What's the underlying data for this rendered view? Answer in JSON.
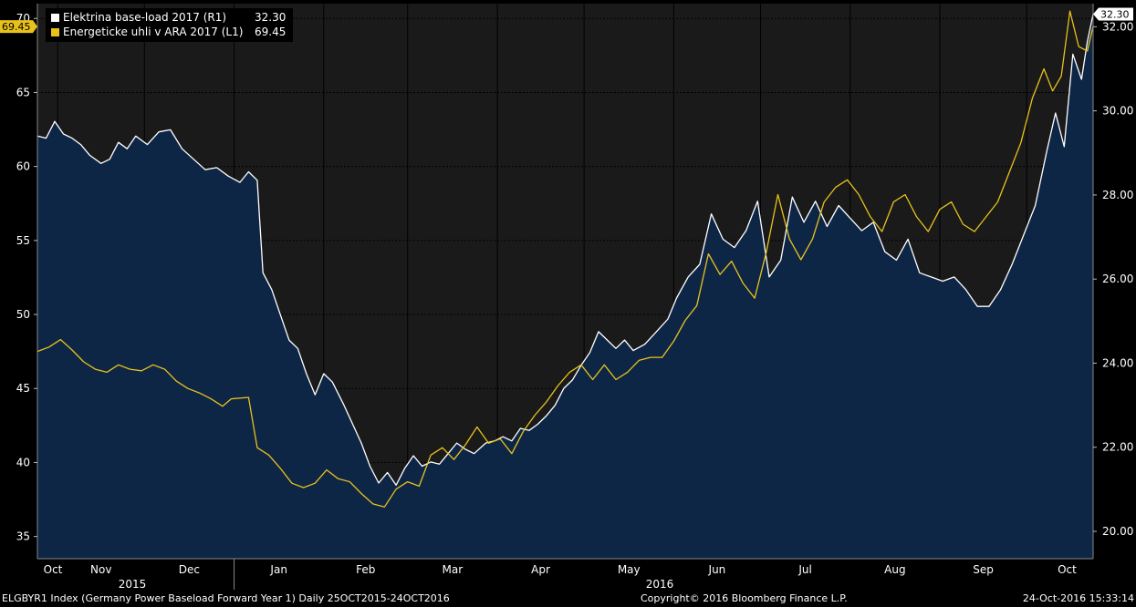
{
  "legend": [
    {
      "name": "Elektrina base-load 2017 (R1)",
      "value": "32.30",
      "color": "#ffffff"
    },
    {
      "name": "Energeticke uhli v ARA 2017 (L1)",
      "value": "69.45",
      "color": "#e8c21b"
    }
  ],
  "left_badge": "69.45",
  "right_badge": "32.30",
  "footer": {
    "left": "ELGBYR1 Index (Germany Power Baseload Forward Year 1)  Daily 25OCT2015-24OCT2016",
    "center": "Copyright© 2016 Bloomberg Finance L.P.",
    "right": "24-Oct-2016 15:33:14"
  },
  "chart_data": {
    "type": "line",
    "x_range": [
      "2015-10-25",
      "2016-10-24"
    ],
    "months": [
      "Oct",
      "Nov",
      "Dec",
      "Jan",
      "Feb",
      "Mar",
      "Apr",
      "May",
      "Jun",
      "Jul",
      "Aug",
      "Sep",
      "Oct"
    ],
    "years": [
      "2015",
      "2016"
    ],
    "left_axis": {
      "ticks": [
        "35",
        "40",
        "45",
        "50",
        "55",
        "60",
        "65",
        "70"
      ],
      "range": [
        33.5,
        71
      ]
    },
    "right_axis": {
      "ticks": [
        "20.00",
        "22.00",
        "24.00",
        "26.00",
        "28.00",
        "30.00",
        "32.00"
      ],
      "range": [
        19.35,
        32.55
      ]
    },
    "series": [
      {
        "name": "Elektrina base-load 2017 (R1)",
        "axis": "right",
        "color": "#ffffff",
        "fill": "#0e2646",
        "points": [
          [
            "2015-10-25",
            29.4
          ],
          [
            "2015-10-28",
            29.35
          ],
          [
            "2015-10-31",
            29.75
          ],
          [
            "2015-11-03",
            29.45
          ],
          [
            "2015-11-06",
            29.35
          ],
          [
            "2015-11-09",
            29.2
          ],
          [
            "2015-11-12",
            28.95
          ],
          [
            "2015-11-16",
            28.75
          ],
          [
            "2015-11-19",
            28.85
          ],
          [
            "2015-11-22",
            29.25
          ],
          [
            "2015-11-25",
            29.1
          ],
          [
            "2015-11-28",
            29.4
          ],
          [
            "2015-12-02",
            29.2
          ],
          [
            "2015-12-06",
            29.5
          ],
          [
            "2015-12-10",
            29.55
          ],
          [
            "2015-12-14",
            29.1
          ],
          [
            "2015-12-18",
            28.85
          ],
          [
            "2015-12-22",
            28.6
          ],
          [
            "2015-12-26",
            28.65
          ],
          [
            "2015-12-30",
            28.45
          ],
          [
            "2016-01-03",
            28.3
          ],
          [
            "2016-01-06",
            28.55
          ],
          [
            "2016-01-09",
            28.35
          ],
          [
            "2016-01-11",
            26.15
          ],
          [
            "2016-01-14",
            25.75
          ],
          [
            "2016-01-17",
            25.15
          ],
          [
            "2016-01-20",
            24.55
          ],
          [
            "2016-01-23",
            24.35
          ],
          [
            "2016-01-26",
            23.75
          ],
          [
            "2016-01-29",
            23.25
          ],
          [
            "2016-02-01",
            23.75
          ],
          [
            "2016-02-04",
            23.55
          ],
          [
            "2016-02-08",
            23.0
          ],
          [
            "2016-02-11",
            22.55
          ],
          [
            "2016-02-14",
            22.1
          ],
          [
            "2016-02-17",
            21.55
          ],
          [
            "2016-02-20",
            21.15
          ],
          [
            "2016-02-23",
            21.4
          ],
          [
            "2016-02-26",
            21.1
          ],
          [
            "2016-02-29",
            21.5
          ],
          [
            "2016-03-03",
            21.8
          ],
          [
            "2016-03-06",
            21.55
          ],
          [
            "2016-03-09",
            21.65
          ],
          [
            "2016-03-12",
            21.6
          ],
          [
            "2016-03-15",
            21.85
          ],
          [
            "2016-03-18",
            22.1
          ],
          [
            "2016-03-21",
            21.95
          ],
          [
            "2016-03-24",
            21.85
          ],
          [
            "2016-03-28",
            22.1
          ],
          [
            "2016-03-31",
            22.15
          ],
          [
            "2016-04-03",
            22.25
          ],
          [
            "2016-04-06",
            22.15
          ],
          [
            "2016-04-09",
            22.45
          ],
          [
            "2016-04-12",
            22.4
          ],
          [
            "2016-04-15",
            22.55
          ],
          [
            "2016-04-18",
            22.75
          ],
          [
            "2016-04-21",
            23.0
          ],
          [
            "2016-04-24",
            23.4
          ],
          [
            "2016-04-27",
            23.6
          ],
          [
            "2016-04-30",
            23.95
          ],
          [
            "2016-05-03",
            24.25
          ],
          [
            "2016-05-06",
            24.75
          ],
          [
            "2016-05-09",
            24.55
          ],
          [
            "2016-05-12",
            24.35
          ],
          [
            "2016-05-15",
            24.55
          ],
          [
            "2016-05-18",
            24.3
          ],
          [
            "2016-05-22",
            24.45
          ],
          [
            "2016-05-26",
            24.75
          ],
          [
            "2016-05-30",
            25.05
          ],
          [
            "2016-06-02",
            25.55
          ],
          [
            "2016-06-06",
            26.05
          ],
          [
            "2016-06-10",
            26.35
          ],
          [
            "2016-06-14",
            27.55
          ],
          [
            "2016-06-18",
            26.95
          ],
          [
            "2016-06-22",
            26.75
          ],
          [
            "2016-06-26",
            27.15
          ],
          [
            "2016-06-30",
            27.85
          ],
          [
            "2016-07-04",
            26.05
          ],
          [
            "2016-07-08",
            26.45
          ],
          [
            "2016-07-12",
            27.95
          ],
          [
            "2016-07-16",
            27.35
          ],
          [
            "2016-07-20",
            27.85
          ],
          [
            "2016-07-24",
            27.25
          ],
          [
            "2016-07-28",
            27.75
          ],
          [
            "2016-08-01",
            27.45
          ],
          [
            "2016-08-05",
            27.15
          ],
          [
            "2016-08-09",
            27.35
          ],
          [
            "2016-08-13",
            26.65
          ],
          [
            "2016-08-17",
            26.45
          ],
          [
            "2016-08-21",
            26.95
          ],
          [
            "2016-08-25",
            26.15
          ],
          [
            "2016-08-29",
            26.05
          ],
          [
            "2016-09-02",
            25.95
          ],
          [
            "2016-09-06",
            26.05
          ],
          [
            "2016-09-10",
            25.75
          ],
          [
            "2016-09-14",
            25.35
          ],
          [
            "2016-09-18",
            25.35
          ],
          [
            "2016-09-22",
            25.75
          ],
          [
            "2016-09-26",
            26.35
          ],
          [
            "2016-09-30",
            27.05
          ],
          [
            "2016-10-04",
            27.75
          ],
          [
            "2016-10-08",
            29.05
          ],
          [
            "2016-10-11",
            29.95
          ],
          [
            "2016-10-14",
            29.15
          ],
          [
            "2016-10-17",
            31.35
          ],
          [
            "2016-10-20",
            30.75
          ],
          [
            "2016-10-22",
            31.65
          ],
          [
            "2016-10-24",
            32.3
          ]
        ]
      },
      {
        "name": "Energeticke uhli v ARA 2017 (L1)",
        "axis": "left",
        "color": "#e8c21b",
        "points": [
          [
            "2015-10-25",
            47.5
          ],
          [
            "2015-10-29",
            47.8
          ],
          [
            "2015-11-02",
            48.3
          ],
          [
            "2015-11-06",
            47.6
          ],
          [
            "2015-11-10",
            46.8
          ],
          [
            "2015-11-14",
            46.3
          ],
          [
            "2015-11-18",
            46.1
          ],
          [
            "2015-11-22",
            46.6
          ],
          [
            "2015-11-26",
            46.3
          ],
          [
            "2015-11-30",
            46.2
          ],
          [
            "2015-12-04",
            46.6
          ],
          [
            "2015-12-08",
            46.3
          ],
          [
            "2015-12-12",
            45.5
          ],
          [
            "2015-12-16",
            45.0
          ],
          [
            "2015-12-20",
            44.7
          ],
          [
            "2015-12-24",
            44.3
          ],
          [
            "2015-12-28",
            43.8
          ],
          [
            "2015-12-31",
            44.3
          ],
          [
            "2016-01-06",
            44.4
          ],
          [
            "2016-01-09",
            41.0
          ],
          [
            "2016-01-13",
            40.5
          ],
          [
            "2016-01-17",
            39.6
          ],
          [
            "2016-01-21",
            38.6
          ],
          [
            "2016-01-25",
            38.3
          ],
          [
            "2016-01-29",
            38.6
          ],
          [
            "2016-02-02",
            39.5
          ],
          [
            "2016-02-06",
            38.9
          ],
          [
            "2016-02-10",
            38.7
          ],
          [
            "2016-02-14",
            37.9
          ],
          [
            "2016-02-18",
            37.2
          ],
          [
            "2016-02-22",
            37.0
          ],
          [
            "2016-02-26",
            38.2
          ],
          [
            "2016-03-01",
            38.7
          ],
          [
            "2016-03-05",
            38.4
          ],
          [
            "2016-03-09",
            40.5
          ],
          [
            "2016-03-13",
            41.0
          ],
          [
            "2016-03-17",
            40.2
          ],
          [
            "2016-03-21",
            41.2
          ],
          [
            "2016-03-25",
            42.4
          ],
          [
            "2016-03-29",
            41.3
          ],
          [
            "2016-04-02",
            41.6
          ],
          [
            "2016-04-06",
            40.6
          ],
          [
            "2016-04-10",
            42.1
          ],
          [
            "2016-04-14",
            43.2
          ],
          [
            "2016-04-18",
            44.1
          ],
          [
            "2016-04-22",
            45.2
          ],
          [
            "2016-04-26",
            46.1
          ],
          [
            "2016-04-30",
            46.6
          ],
          [
            "2016-05-04",
            45.6
          ],
          [
            "2016-05-08",
            46.6
          ],
          [
            "2016-05-12",
            45.6
          ],
          [
            "2016-05-16",
            46.1
          ],
          [
            "2016-05-20",
            46.9
          ],
          [
            "2016-05-24",
            47.1
          ],
          [
            "2016-05-28",
            47.1
          ],
          [
            "2016-06-01",
            48.2
          ],
          [
            "2016-06-05",
            49.6
          ],
          [
            "2016-06-09",
            50.6
          ],
          [
            "2016-06-13",
            54.1
          ],
          [
            "2016-06-17",
            52.7
          ],
          [
            "2016-06-21",
            53.6
          ],
          [
            "2016-06-25",
            52.1
          ],
          [
            "2016-06-29",
            51.1
          ],
          [
            "2016-07-03",
            54.2
          ],
          [
            "2016-07-07",
            58.1
          ],
          [
            "2016-07-11",
            55.1
          ],
          [
            "2016-07-15",
            53.7
          ],
          [
            "2016-07-19",
            55.1
          ],
          [
            "2016-07-23",
            57.6
          ],
          [
            "2016-07-27",
            58.6
          ],
          [
            "2016-07-31",
            59.1
          ],
          [
            "2016-08-04",
            58.1
          ],
          [
            "2016-08-08",
            56.6
          ],
          [
            "2016-08-12",
            55.6
          ],
          [
            "2016-08-16",
            57.6
          ],
          [
            "2016-08-20",
            58.1
          ],
          [
            "2016-08-24",
            56.6
          ],
          [
            "2016-08-28",
            55.6
          ],
          [
            "2016-09-01",
            57.1
          ],
          [
            "2016-09-05",
            57.6
          ],
          [
            "2016-09-09",
            56.1
          ],
          [
            "2016-09-13",
            55.6
          ],
          [
            "2016-09-17",
            56.6
          ],
          [
            "2016-09-21",
            57.6
          ],
          [
            "2016-09-25",
            59.6
          ],
          [
            "2016-09-29",
            61.6
          ],
          [
            "2016-10-03",
            64.6
          ],
          [
            "2016-10-07",
            66.6
          ],
          [
            "2016-10-10",
            65.1
          ],
          [
            "2016-10-13",
            66.1
          ],
          [
            "2016-10-16",
            70.5
          ],
          [
            "2016-10-19",
            68.1
          ],
          [
            "2016-10-22",
            67.8
          ],
          [
            "2016-10-24",
            69.45
          ]
        ]
      }
    ]
  }
}
